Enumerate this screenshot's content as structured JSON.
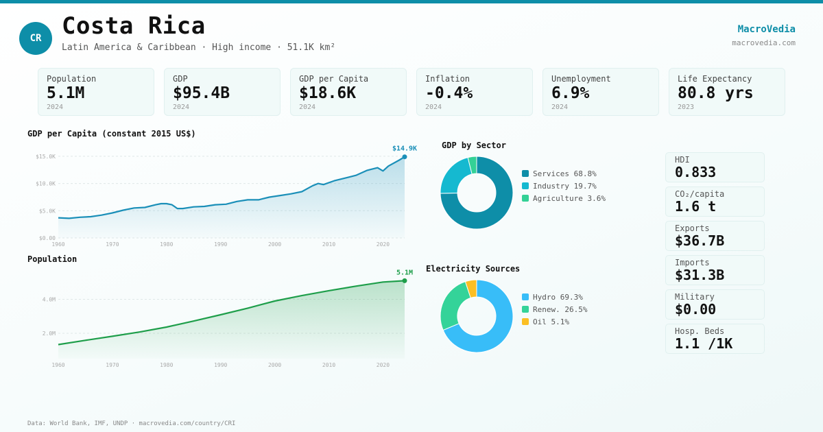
{
  "header": {
    "badge": "CR",
    "title": "Costa Rica",
    "subtitle": "Latin America & Caribbean · High income · 51.1K km²",
    "brand": "MacroVedia",
    "brand_url": "macrovedia.com"
  },
  "stats": [
    {
      "label": "Population",
      "value": "5.1M",
      "year": "2024"
    },
    {
      "label": "GDP",
      "value": "$95.4B",
      "year": "2024"
    },
    {
      "label": "GDP per Capita",
      "value": "$18.6K",
      "year": "2024"
    },
    {
      "label": "Inflation",
      "value": "-0.4%",
      "year": "2024"
    },
    {
      "label": "Unemployment",
      "value": "6.9%",
      "year": "2024"
    },
    {
      "label": "Life Expectancy",
      "value": "80.8 yrs",
      "year": "2023"
    }
  ],
  "side_stats": [
    {
      "label": "HDI",
      "value": "0.833"
    },
    {
      "label": "CO₂/capita",
      "value": "1.6 t"
    },
    {
      "label": "Exports",
      "value": "$36.7B"
    },
    {
      "label": "Imports",
      "value": "$31.3B"
    },
    {
      "label": "Military",
      "value": "$0.00"
    },
    {
      "label": "Hosp. Beds",
      "value": "1.1 /1K"
    }
  ],
  "footer": "Data: World Bank, IMF, UNDP · macrovedia.com/country/CRI",
  "chart_data": [
    {
      "type": "area",
      "title": "GDP per Capita (constant 2015 US$)",
      "color": "#1a8fb8",
      "end_label": "$14.9K",
      "y_ticks": [
        "$0.00",
        "$5.0K",
        "$10.0K",
        "$15.0K"
      ],
      "y_tick_values": [
        0,
        5000,
        10000,
        15000
      ],
      "x_ticks": [
        "1960",
        "1970",
        "1980",
        "1990",
        "2000",
        "2010",
        "2020"
      ],
      "xlim": [
        1960,
        2024
      ],
      "ylim": [
        0,
        16500
      ],
      "x": [
        1960,
        1962,
        1964,
        1966,
        1968,
        1970,
        1972,
        1974,
        1976,
        1978,
        1979,
        1980,
        1981,
        1982,
        1983,
        1985,
        1987,
        1989,
        1991,
        1993,
        1995,
        1997,
        1999,
        2001,
        2003,
        2005,
        2007,
        2008,
        2009,
        2011,
        2013,
        2015,
        2017,
        2019,
        2020,
        2021,
        2023,
        2024
      ],
      "y": [
        3700,
        3600,
        3800,
        3900,
        4200,
        4600,
        5100,
        5500,
        5600,
        6100,
        6300,
        6300,
        6100,
        5400,
        5400,
        5700,
        5800,
        6100,
        6200,
        6700,
        7000,
        7000,
        7500,
        7800,
        8100,
        8500,
        9600,
        10000,
        9800,
        10500,
        11000,
        11500,
        12400,
        12900,
        12300,
        13200,
        14300,
        14900
      ]
    },
    {
      "type": "area",
      "title": "Population",
      "color": "#1e9e4a",
      "end_label": "5.1M",
      "y_ticks": [
        "2.0M",
        "4.0M"
      ],
      "y_tick_values": [
        2.0,
        4.0
      ],
      "x_ticks": [
        "1960",
        "1970",
        "1980",
        "1990",
        "2000",
        "2010",
        "2020"
      ],
      "xlim": [
        1960,
        2024
      ],
      "ylim": [
        0.5,
        5.6
      ],
      "x": [
        1960,
        1965,
        1970,
        1975,
        1980,
        1985,
        1990,
        1995,
        2000,
        2005,
        2010,
        2015,
        2020,
        2024
      ],
      "y": [
        1.33,
        1.58,
        1.82,
        2.07,
        2.36,
        2.72,
        3.09,
        3.48,
        3.9,
        4.22,
        4.51,
        4.78,
        5.02,
        5.1
      ]
    },
    {
      "type": "pie",
      "title": "GDP by Sector",
      "labels": [
        "Services 68.8%",
        "Industry 19.7%",
        "Agriculture 3.6%"
      ],
      "values": [
        68.8,
        19.7,
        3.6
      ],
      "colors": [
        "#0e8ea8",
        "#15b9d0",
        "#34d196"
      ]
    },
    {
      "type": "pie",
      "title": "Electricity Sources",
      "labels": [
        "Hydro 69.3%",
        "Renew. 26.5%",
        "Oil 5.1%"
      ],
      "values": [
        69.3,
        26.5,
        5.1
      ],
      "colors": [
        "#38bdf8",
        "#34d399",
        "#fbbf24"
      ]
    }
  ]
}
